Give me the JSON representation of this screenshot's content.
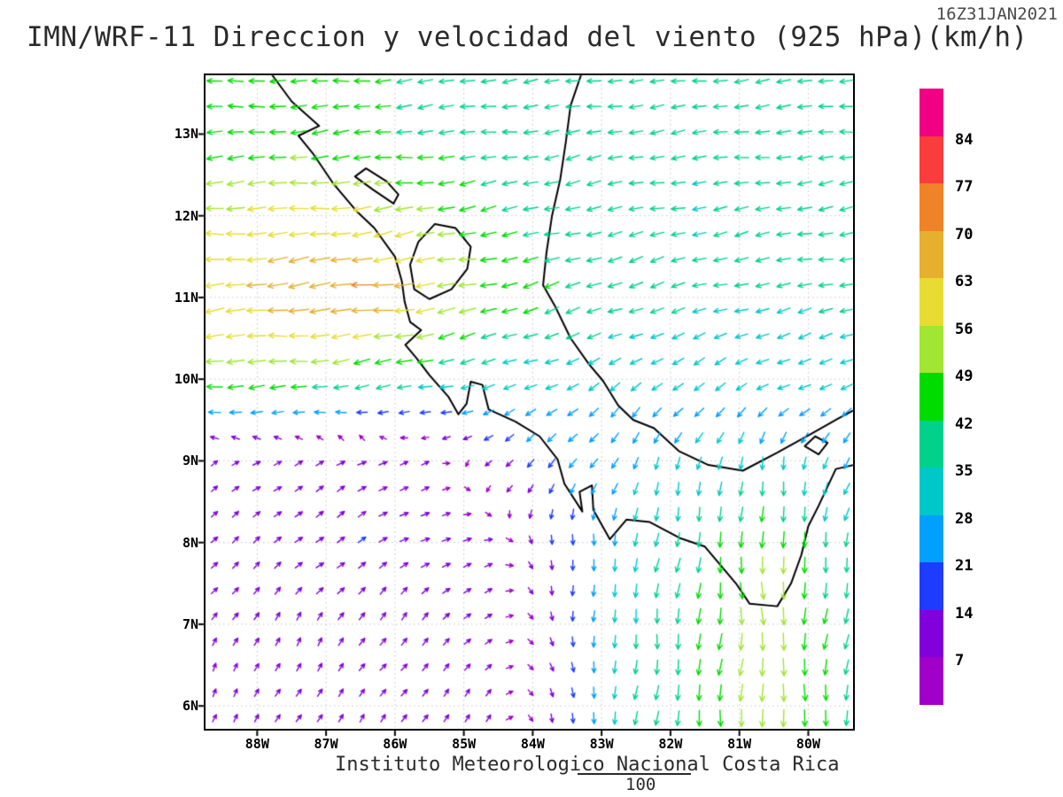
{
  "header": {
    "title": "IMN/WRF-11 Direccion y velocidad del viento (925 hPa)(km/h)",
    "timestamp": "16Z31JAN2021"
  },
  "footer": {
    "institution": "Instituto Meteorologico Nacional Costa Rica",
    "run_number": "100"
  },
  "chart_data": {
    "type": "vector_field",
    "title": "IMN/WRF-11 Direccion y velocidad del viento (925 hPa)(km/h)",
    "level": "925 hPa",
    "units": "km/h",
    "valid_time": "16Z31JAN2021",
    "grid_lines": "dotted",
    "x_axis": {
      "ticks": [
        "88W",
        "87W",
        "86W",
        "85W",
        "84W",
        "83W",
        "82W",
        "81W",
        "80W"
      ],
      "tick_lons": [
        -88,
        -87,
        -86,
        -85,
        -84,
        -83,
        -82,
        -81,
        -80
      ],
      "lon_range": [
        -88.75,
        -79.35
      ]
    },
    "y_axis": {
      "ticks": [
        "6N",
        "7N",
        "8N",
        "9N",
        "10N",
        "11N",
        "12N",
        "13N"
      ],
      "tick_lats": [
        6,
        7,
        8,
        9,
        10,
        11,
        12,
        13
      ],
      "lat_range": [
        5.72,
        13.72
      ]
    },
    "colorbar": {
      "levels": [
        7,
        14,
        21,
        28,
        35,
        42,
        49,
        56,
        63,
        70,
        77,
        84
      ],
      "colors": [
        "#a000c8",
        "#8200dc",
        "#1e3cff",
        "#00a0ff",
        "#00c8c8",
        "#00d28c",
        "#00dc00",
        "#a0e632",
        "#e6dc32",
        "#e6af2d",
        "#f08228",
        "#fa3c3c",
        "#f00082"
      ]
    },
    "wind_grid": {
      "comment": "u,v wind components in km/h on a 1x1 degree grid; rows = lats (S to N), cols = lons (W to E)",
      "lats": [
        6,
        7,
        8,
        9,
        10,
        11,
        12,
        13
      ],
      "lons": [
        -88.5,
        -87.5,
        -86.5,
        -85.5,
        -84.5,
        -83.5,
        -82.5,
        -81.5,
        -80.5,
        -79.5
      ],
      "u": [
        [
          4,
          5,
          6,
          6,
          5,
          2,
          -3,
          -5,
          0,
          -6
        ],
        [
          5,
          6,
          7,
          8,
          6,
          2,
          -4,
          -6,
          2,
          -6
        ],
        [
          8,
          10,
          12,
          12,
          8,
          0,
          -5,
          -6,
          4,
          -8
        ],
        [
          6,
          10,
          12,
          8,
          -10,
          -15,
          -10,
          -8,
          -6,
          -10
        ],
        [
          -50,
          -48,
          -42,
          -38,
          -30,
          -28,
          -25,
          -25,
          -28,
          -30
        ],
        [
          -62,
          -68,
          -72,
          -60,
          -45,
          -40,
          -36,
          -34,
          -34,
          -36
        ],
        [
          -55,
          -60,
          -58,
          -50,
          -42,
          -38,
          -36,
          -34,
          -36,
          -38
        ],
        [
          -42,
          -45,
          -44,
          -40,
          -38,
          -36,
          -35,
          -35,
          -36,
          -38
        ]
      ],
      "v": [
        [
          8,
          9,
          9,
          8,
          6,
          -15,
          -35,
          -45,
          -55,
          -40
        ],
        [
          9,
          10,
          10,
          9,
          5,
          -15,
          -35,
          -45,
          -55,
          -40
        ],
        [
          6,
          8,
          8,
          6,
          0,
          -18,
          -32,
          -40,
          -50,
          -35
        ],
        [
          5,
          6,
          6,
          2,
          -8,
          -18,
          -26,
          -30,
          -30,
          -25
        ],
        [
          -4,
          -4,
          -6,
          -8,
          -10,
          -14,
          -16,
          -14,
          -12,
          -10
        ],
        [
          -6,
          -8,
          -10,
          -10,
          -12,
          -12,
          -12,
          -10,
          -8,
          -8
        ],
        [
          -4,
          -6,
          -8,
          -8,
          -8,
          -10,
          -8,
          -6,
          -6,
          -6
        ],
        [
          -2,
          -3,
          -4,
          -4,
          -5,
          -6,
          -5,
          -4,
          -4,
          -4
        ]
      ]
    },
    "coastline": [
      {
        "name": "pacific-coast",
        "points": [
          [
            -87.78,
            13.72
          ],
          [
            -87.5,
            13.4
          ],
          [
            -87.1,
            13.1
          ],
          [
            -87.4,
            12.98
          ],
          [
            -87.18,
            12.75
          ],
          [
            -86.9,
            12.4
          ],
          [
            -86.55,
            12.05
          ],
          [
            -86.3,
            11.85
          ],
          [
            -86.0,
            11.5
          ],
          [
            -85.9,
            11.2
          ],
          [
            -85.86,
            10.95
          ],
          [
            -85.78,
            10.7
          ],
          [
            -85.62,
            10.6
          ],
          [
            -85.85,
            10.42
          ],
          [
            -85.68,
            10.25
          ],
          [
            -85.5,
            10.05
          ],
          [
            -85.22,
            9.78
          ],
          [
            -85.08,
            9.57
          ],
          [
            -84.96,
            9.7
          ],
          [
            -84.9,
            9.97
          ],
          [
            -84.73,
            9.93
          ],
          [
            -84.64,
            9.63
          ],
          [
            -84.25,
            9.48
          ],
          [
            -83.9,
            9.3
          ],
          [
            -83.64,
            9.02
          ],
          [
            -83.54,
            8.72
          ],
          [
            -83.28,
            8.38
          ],
          [
            -83.32,
            8.62
          ],
          [
            -83.14,
            8.7
          ],
          [
            -83.12,
            8.4
          ],
          [
            -82.88,
            8.04
          ],
          [
            -82.64,
            8.28
          ],
          [
            -82.3,
            8.25
          ],
          [
            -81.85,
            8.05
          ],
          [
            -81.5,
            7.95
          ],
          [
            -81.05,
            7.5
          ],
          [
            -80.85,
            7.25
          ],
          [
            -80.45,
            7.22
          ],
          [
            -80.25,
            7.5
          ],
          [
            -80.1,
            7.85
          ],
          [
            -80.0,
            8.2
          ],
          [
            -79.85,
            8.45
          ],
          [
            -79.6,
            8.9
          ],
          [
            -79.34,
            8.95
          ]
        ]
      },
      {
        "name": "caribbean-coast",
        "points": [
          [
            -83.3,
            13.72
          ],
          [
            -83.45,
            13.35
          ],
          [
            -83.52,
            12.9
          ],
          [
            -83.6,
            12.45
          ],
          [
            -83.72,
            12.0
          ],
          [
            -83.8,
            11.55
          ],
          [
            -83.85,
            11.15
          ],
          [
            -83.68,
            10.9
          ],
          [
            -83.45,
            10.5
          ],
          [
            -83.18,
            10.18
          ],
          [
            -82.98,
            9.98
          ],
          [
            -82.76,
            9.68
          ],
          [
            -82.54,
            9.5
          ],
          [
            -82.24,
            9.4
          ],
          [
            -81.88,
            9.12
          ],
          [
            -81.45,
            8.95
          ],
          [
            -80.95,
            8.88
          ],
          [
            -80.45,
            9.1
          ],
          [
            -79.98,
            9.32
          ],
          [
            -79.56,
            9.52
          ],
          [
            -79.34,
            9.62
          ]
        ]
      },
      {
        "name": "lake-nicaragua",
        "points": [
          [
            -85.72,
            11.1
          ],
          [
            -85.5,
            10.98
          ],
          [
            -85.18,
            11.1
          ],
          [
            -84.95,
            11.35
          ],
          [
            -84.9,
            11.62
          ],
          [
            -85.12,
            11.85
          ],
          [
            -85.42,
            11.9
          ],
          [
            -85.66,
            11.68
          ],
          [
            -85.78,
            11.4
          ],
          [
            -85.72,
            11.1
          ]
        ]
      },
      {
        "name": "lake-managua",
        "points": [
          [
            -86.02,
            12.15
          ],
          [
            -86.32,
            12.32
          ],
          [
            -86.58,
            12.48
          ],
          [
            -86.42,
            12.58
          ],
          [
            -86.12,
            12.42
          ],
          [
            -85.95,
            12.26
          ],
          [
            -86.02,
            12.15
          ]
        ]
      },
      {
        "name": "gatun-lake",
        "points": [
          [
            -80.05,
            9.18
          ],
          [
            -79.85,
            9.08
          ],
          [
            -79.72,
            9.22
          ],
          [
            -79.9,
            9.3
          ],
          [
            -80.05,
            9.18
          ]
        ]
      }
    ]
  }
}
